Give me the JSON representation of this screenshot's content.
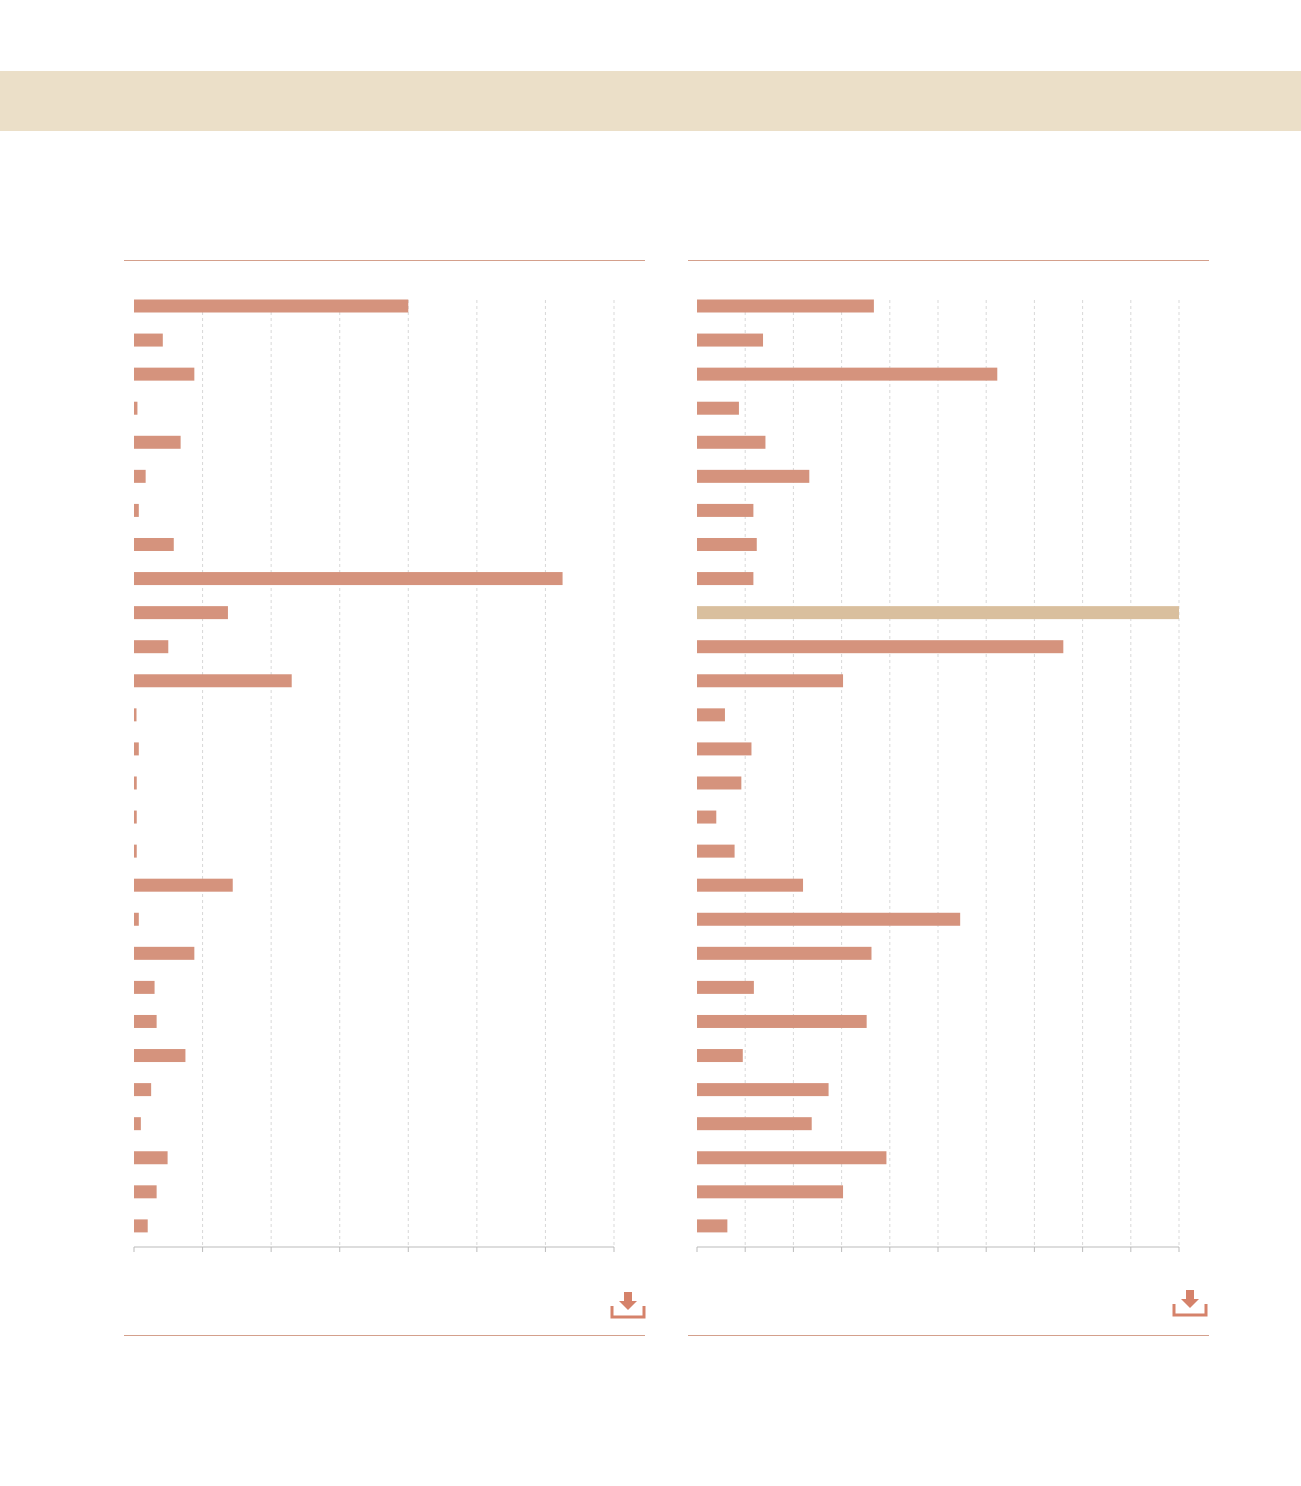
{
  "colors": {
    "banner": "#ebdfc8",
    "bar": "#d5937d",
    "bar_highlight": "#d9bf9e",
    "grid": "#d8d8d8",
    "rule": "#d4a08c",
    "icon": "#d5826a"
  },
  "icons": {
    "download": "download-icon"
  },
  "chart_data": [
    {
      "type": "bar",
      "orientation": "horizontal",
      "xlim": [
        0,
        7
      ],
      "grid": true,
      "values": [
        4.0,
        0.42,
        0.88,
        0.05,
        0.68,
        0.17,
        0.07,
        0.58,
        6.25,
        1.37,
        0.5,
        2.3,
        0.03,
        0.07,
        0.04,
        0.04,
        0.04,
        1.44,
        0.07,
        0.88,
        0.3,
        0.33,
        0.75,
        0.25,
        0.1,
        0.49,
        0.33,
        0.2
      ]
    },
    {
      "type": "bar",
      "orientation": "horizontal",
      "xlim": [
        0,
        10
      ],
      "grid": true,
      "highlight_index": 9,
      "values": [
        3.67,
        1.37,
        6.23,
        0.87,
        1.42,
        2.33,
        1.17,
        1.24,
        1.17,
        10.0,
        7.6,
        3.03,
        0.58,
        1.13,
        0.92,
        0.4,
        0.78,
        2.2,
        5.46,
        3.62,
        1.18,
        3.52,
        0.95,
        2.73,
        2.38,
        3.93,
        3.03,
        0.63
      ]
    }
  ]
}
